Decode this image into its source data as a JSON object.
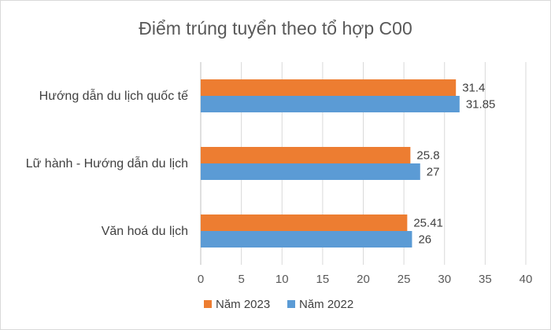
{
  "chart_data": {
    "type": "bar",
    "orientation": "horizontal",
    "title": "Điểm trúng tuyển theo tổ hợp C00",
    "categories": [
      "Hướng dẫn du lịch quốc tế",
      "Lữ hành - Hướng dẫn du lịch",
      "Văn hoá du lịch"
    ],
    "series": [
      {
        "name": "Năm 2023",
        "color": "#ED7D31",
        "values": [
          31.4,
          25.8,
          25.41
        ],
        "labels": [
          "31.4",
          "25.8",
          "25.41"
        ]
      },
      {
        "name": "Năm 2022",
        "color": "#5B9BD5",
        "values": [
          31.85,
          27,
          26
        ],
        "labels": [
          "31.85",
          "27",
          "26"
        ]
      }
    ],
    "xlim": [
      0,
      40
    ],
    "xticks": [
      0,
      5,
      10,
      15,
      20,
      25,
      30,
      35,
      40
    ],
    "grid": true,
    "legend_position": "bottom",
    "xlabel": "",
    "ylabel": ""
  }
}
